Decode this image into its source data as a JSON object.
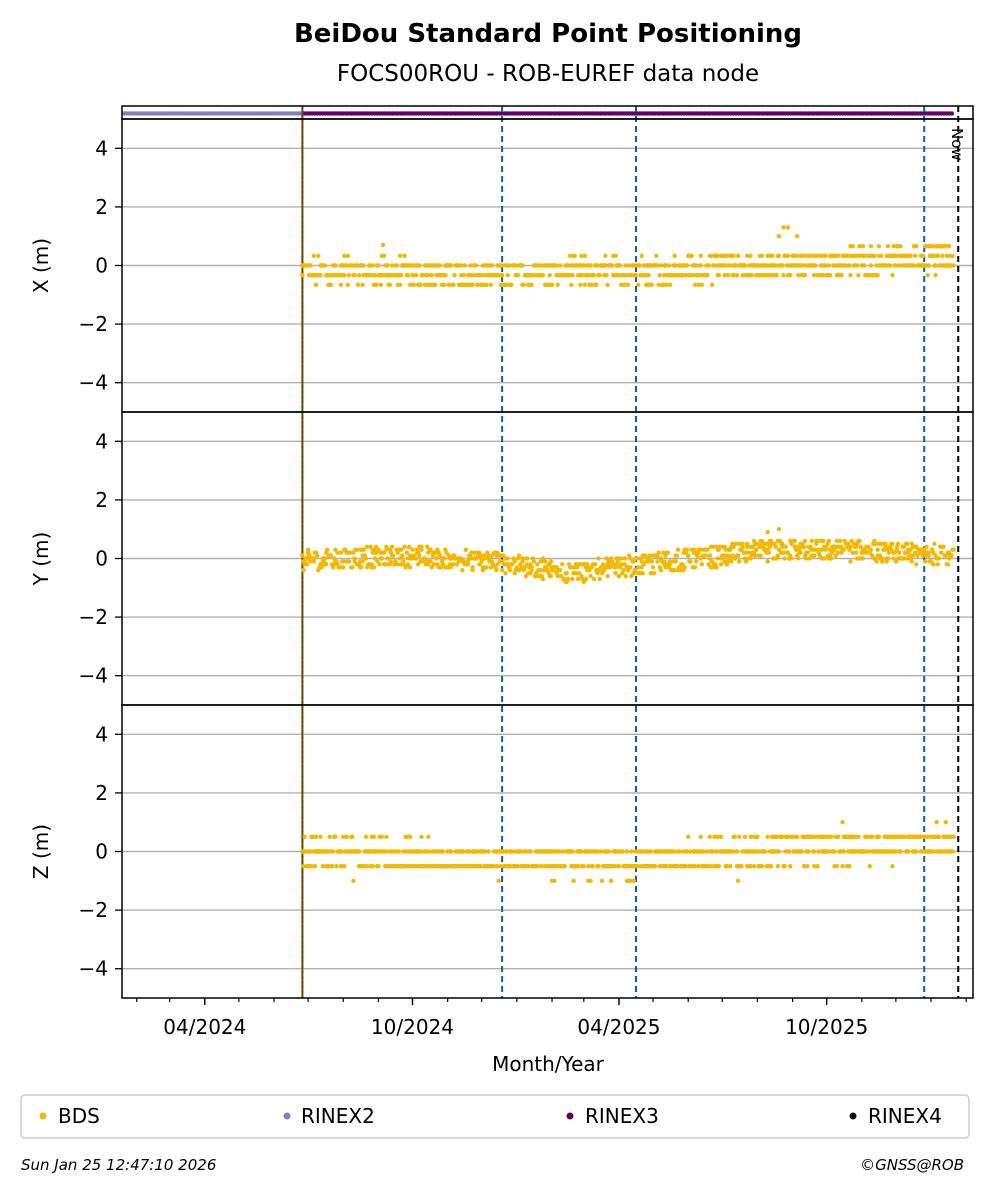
{
  "chart_data": {
    "type": "scatter",
    "title": "BeiDou Standard Point Positioning",
    "subtitle": "FOCS00ROU - ROB-EUREF data node",
    "xlabel": "Month/Year",
    "x_tick_labels": [
      "04/2024",
      "10/2024",
      "04/2025",
      "10/2025"
    ],
    "x_tick_dates": [
      "2024-04-01",
      "2024-10-01",
      "2025-04-01",
      "2025-10-01"
    ],
    "xlim": [
      "2024-01-19",
      "2026-02-07"
    ],
    "data_start": "2024-06-26",
    "data_end": "2026-01-21",
    "now_date": "2026-01-25",
    "now_label": "Now",
    "event_lines": [
      {
        "date": "2024-06-26",
        "color": "#008000",
        "style": "solid"
      },
      {
        "date": "2024-06-26",
        "color": "#ff0000",
        "style": "dotted"
      },
      {
        "date": "2024-12-19",
        "color": "#0060c0",
        "style": "dashed"
      },
      {
        "date": "2025-04-16",
        "color": "#0060c0",
        "style": "dashed"
      },
      {
        "date": "2025-12-26",
        "color": "#0060c0",
        "style": "dashed"
      }
    ],
    "rinex_strip": [
      {
        "name": "RINEX2",
        "from": "2024-01-19",
        "to": "2024-06-26",
        "color": "#8080c0"
      },
      {
        "name": "RINEX3",
        "from": "2024-06-26",
        "to": "2026-01-21",
        "color": "#660066"
      }
    ],
    "subplots": [
      {
        "ylabel": "X (m)",
        "ylim": [
          -5,
          5
        ],
        "yticks": [
          -4,
          -2,
          0,
          2,
          4
        ],
        "grid": true,
        "trend": [
          [
            "2024-06-26",
            -0.2
          ],
          [
            "2024-12-15",
            -0.3
          ],
          [
            "2025-04-15",
            -0.2
          ],
          [
            "2025-10-15",
            0.1
          ],
          [
            "2026-01-21",
            0.3
          ]
        ],
        "spread": 0.45,
        "quantization": 0.33,
        "outliers": [
          [
            "2025-08-20",
            1.0
          ],
          [
            "2025-08-24",
            1.3
          ],
          [
            "2025-08-28",
            1.3
          ],
          [
            "2025-09-05",
            1.0
          ],
          [
            "2024-09-05",
            0.7
          ]
        ]
      },
      {
        "ylabel": "Y (m)",
        "ylim": [
          -5,
          5
        ],
        "yticks": [
          -4,
          -2,
          0,
          2,
          4
        ],
        "grid": true,
        "trend": [
          [
            "2024-06-26",
            -0.1
          ],
          [
            "2024-09-15",
            0.1
          ],
          [
            "2024-12-15",
            -0.1
          ],
          [
            "2025-02-15",
            -0.5
          ],
          [
            "2025-05-15",
            -0.1
          ],
          [
            "2025-08-15",
            0.3
          ],
          [
            "2025-10-15",
            0.3
          ],
          [
            "2026-01-21",
            0.1
          ]
        ],
        "spread": 0.35,
        "quantization": 0.1,
        "outliers": [
          [
            "2025-08-20",
            1.0
          ],
          [
            "2025-08-10",
            0.9
          ]
        ]
      },
      {
        "ylabel": "Z (m)",
        "ylim": [
          -5,
          5
        ],
        "yticks": [
          -4,
          -2,
          0,
          2,
          4
        ],
        "grid": true,
        "trend": [
          [
            "2024-06-26",
            0.0
          ],
          [
            "2024-10-15",
            -0.2
          ],
          [
            "2025-01-15",
            -0.3
          ],
          [
            "2025-04-15",
            -0.4
          ],
          [
            "2025-08-15",
            0.1
          ],
          [
            "2025-11-15",
            0.2
          ],
          [
            "2026-01-21",
            0.3
          ]
        ],
        "spread": 0.5,
        "quantization": 0.5,
        "outliers": [
          [
            "2025-10-15",
            1.0
          ],
          [
            "2024-08-10",
            -1.0
          ],
          [
            "2025-07-15",
            -1.0
          ]
        ]
      }
    ],
    "series_colors": {
      "BDS": "#f5b800",
      "RINEX2": "#8080c0",
      "RINEX3": "#660066",
      "RINEX4": "#1a0a1a"
    }
  },
  "legend": {
    "items": [
      {
        "label": "BDS",
        "color": "#f5b800"
      },
      {
        "label": "RINEX2",
        "color": "#8080c0"
      },
      {
        "label": "RINEX3",
        "color": "#660066"
      },
      {
        "label": "RINEX4",
        "color": "#1a0a1a"
      }
    ]
  },
  "footer": {
    "timestamp": "Sun Jan 25 12:47:10 2026",
    "copyright": "©GNSS@ROB"
  }
}
